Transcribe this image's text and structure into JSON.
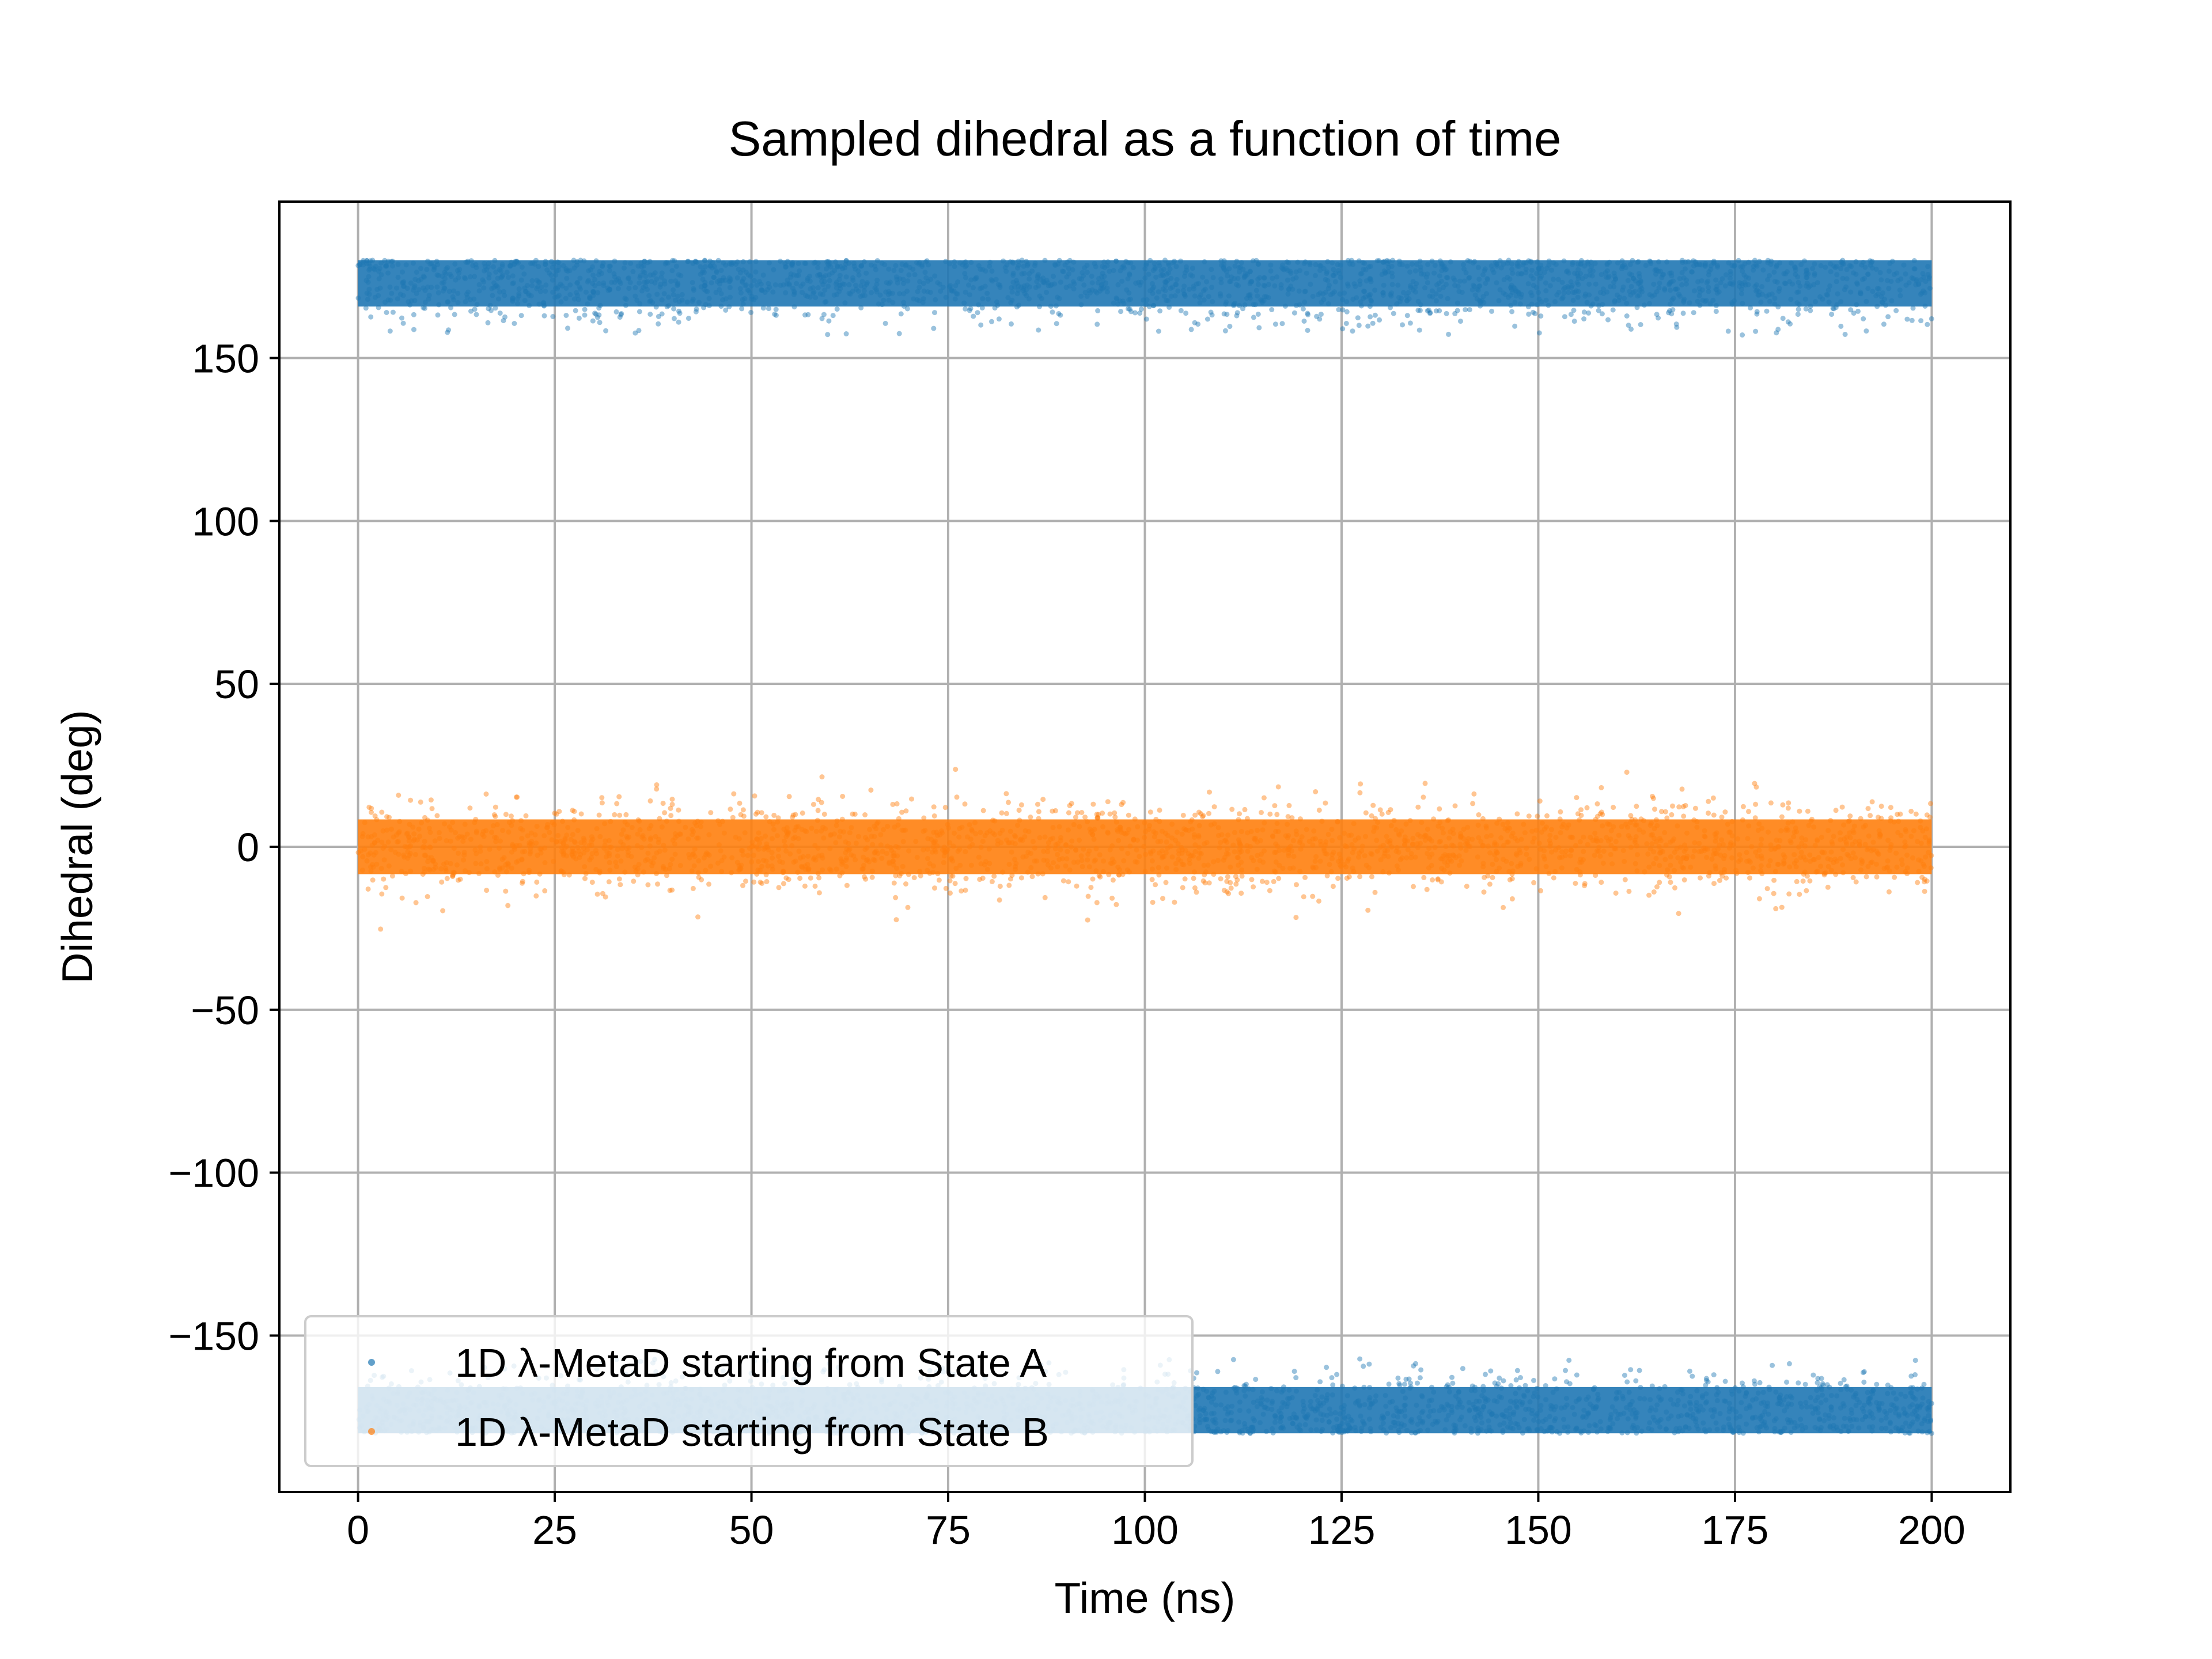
{
  "chart_data": {
    "type": "scatter",
    "title": "Sampled dihedral as a function of time",
    "xlabel": "Time (ns)",
    "ylabel": "Dihedral (deg)",
    "xlim": [
      -10,
      210
    ],
    "ylim": [
      -198,
      198
    ],
    "xticks": [
      0,
      25,
      50,
      75,
      100,
      125,
      150,
      175,
      200
    ],
    "xtick_labels": [
      "0",
      "25",
      "50",
      "75",
      "100",
      "125",
      "150",
      "175",
      "200"
    ],
    "yticks": [
      -150,
      -100,
      -50,
      0,
      50,
      100,
      150
    ],
    "ytick_labels": [
      "−150",
      "−100",
      "−50",
      "0",
      "50",
      "100",
      "150"
    ],
    "grid": true,
    "legend_position": "lower-left",
    "series": [
      {
        "name": "1D λ-MetaD starting from State A",
        "color": "#1f77b4",
        "x_range": [
          0,
          200
        ],
        "bands": [
          {
            "center": 173,
            "spread": 6,
            "range": [
              157,
              180
            ]
          },
          {
            "center": -173,
            "spread": 6,
            "range": [
              -180,
              -157
            ]
          }
        ]
      },
      {
        "name": "1D λ-MetaD starting from State B",
        "color": "#ff7f0e",
        "x_range": [
          0,
          200
        ],
        "bands": [
          {
            "center": 0,
            "spread": 7,
            "range": [
              -27,
              28
            ]
          }
        ]
      }
    ]
  }
}
